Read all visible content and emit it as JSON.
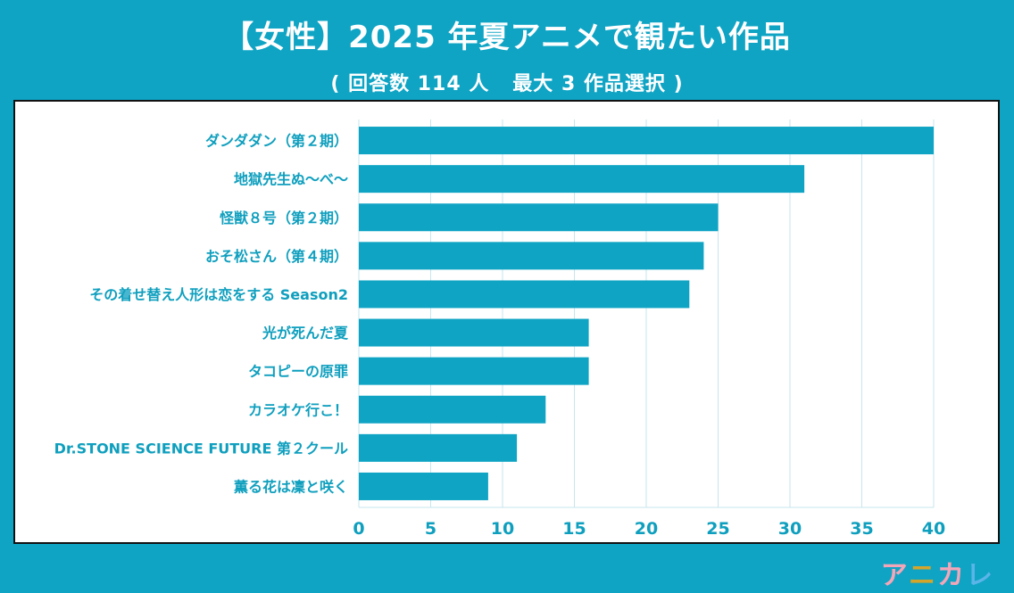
{
  "header": {
    "title": "【女性】2025 年夏アニメで観たい作品",
    "subtitle": "( 回答数 114 人   最大 3 作品選択 )"
  },
  "logo": {
    "chars": [
      "ア",
      "ニ",
      "カ",
      "レ"
    ]
  },
  "colors": {
    "background": "#0fa4c4",
    "bar": "#0fa4c4",
    "label": "#0f9fbe",
    "grid": "#c6e6ee"
  },
  "chart_data": {
    "type": "bar",
    "orientation": "horizontal",
    "title": "【女性】2025 年夏アニメで観たい作品",
    "subtitle": "( 回答数 114 人   最大 3 作品選択 )",
    "xlabel": "",
    "ylabel": "",
    "xlim": [
      0,
      40
    ],
    "xticks": [
      0,
      5,
      10,
      15,
      20,
      25,
      30,
      35,
      40
    ],
    "grid": true,
    "legend": "none",
    "categories": [
      "ダンダダン（第２期）",
      "地獄先生ぬ～べ～",
      "怪獣８号（第２期）",
      "おそ松さん（第４期）",
      "その着せ替え人形は恋をする Season2",
      "光が死んだ夏",
      "タコピーの原罪",
      "カラオケ行こ！",
      "Dr.STONE SCIENCE FUTURE 第２クール",
      "薫る花は凜と咲く"
    ],
    "values": [
      40,
      31,
      25,
      24,
      23,
      16,
      16,
      13,
      11,
      9
    ]
  }
}
